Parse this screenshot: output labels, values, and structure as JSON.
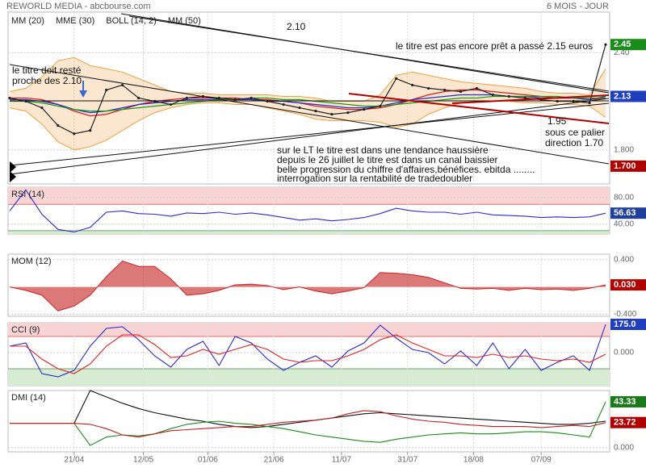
{
  "header": {
    "left": "REWORLD MEDIA - abcbourse.com",
    "right": "6 MOIS - JOUR"
  },
  "chart_data": [
    {
      "type": "price",
      "xlim": [
        0,
        37
      ],
      "ylim": [
        1.59,
        2.65
      ],
      "yticks": [
        {
          "value": 2.4,
          "label": "2.40"
        },
        {
          "value": 1.8,
          "label": "1.800"
        }
      ],
      "close_color": "#222222",
      "close": [
        2.12,
        2.1,
        2.06,
        1.95,
        1.9,
        1.92,
        2.17,
        2.2,
        2.12,
        2.1,
        2.08,
        2.12,
        2.13,
        2.12,
        2.11,
        2.12,
        2.1,
        2.08,
        2.06,
        2.04,
        2.02,
        2.03,
        2.05,
        2.07,
        2.24,
        2.2,
        2.18,
        2.17,
        2.16,
        2.18,
        2.14,
        2.13,
        2.12,
        2.11,
        2.1,
        2.1,
        2.09,
        2.45
      ],
      "series": [
        {
          "name": "MM (20)",
          "color": "#d42020",
          "values": [
            2.12,
            2.12,
            2.11,
            2.08,
            2.04,
            2.01,
            2.02,
            2.05,
            2.08,
            2.1,
            2.11,
            2.12,
            2.12,
            2.12,
            2.12,
            2.11,
            2.11,
            2.1,
            2.09,
            2.07,
            2.06,
            2.05,
            2.05,
            2.06,
            2.08,
            2.11,
            2.14,
            2.16,
            2.17,
            2.17,
            2.16,
            2.15,
            2.14,
            2.13,
            2.12,
            2.12,
            2.11,
            2.12
          ]
        },
        {
          "name": "MME (30)",
          "color": "#2a2ad0",
          "values": [
            2.11,
            2.11,
            2.1,
            2.08,
            2.05,
            2.03,
            2.04,
            2.06,
            2.08,
            2.09,
            2.1,
            2.11,
            2.11,
            2.11,
            2.11,
            2.11,
            2.1,
            2.1,
            2.09,
            2.08,
            2.07,
            2.06,
            2.06,
            2.07,
            2.09,
            2.11,
            2.12,
            2.13,
            2.14,
            2.14,
            2.14,
            2.13,
            2.13,
            2.12,
            2.12,
            2.12,
            2.11,
            2.13
          ]
        },
        {
          "name": "BOLL (14, 2)",
          "color": "#f0a040",
          "upper": [
            2.16,
            2.18,
            2.25,
            2.35,
            2.37,
            2.32,
            2.3,
            2.28,
            2.24,
            2.2,
            2.16,
            2.15,
            2.15,
            2.14,
            2.14,
            2.14,
            2.14,
            2.13,
            2.13,
            2.12,
            2.1,
            2.1,
            2.1,
            2.14,
            2.26,
            2.28,
            2.26,
            2.24,
            2.22,
            2.21,
            2.2,
            2.19,
            2.18,
            2.16,
            2.15,
            2.15,
            2.14,
            2.3
          ],
          "lower": [
            2.06,
            2.04,
            1.96,
            1.85,
            1.8,
            1.82,
            1.86,
            1.92,
            1.98,
            2.03,
            2.06,
            2.08,
            2.09,
            2.09,
            2.08,
            2.08,
            2.06,
            2.04,
            2.02,
            1.99,
            1.98,
            1.98,
            1.98,
            1.97,
            1.94,
            1.96,
            2.02,
            2.06,
            2.09,
            2.1,
            2.1,
            2.1,
            2.09,
            2.09,
            2.08,
            2.08,
            2.07,
            2.0
          ]
        },
        {
          "name": "MM (50)",
          "color": "#1a9a1a",
          "values": [
            2.1,
            2.1,
            2.09,
            2.07,
            2.05,
            2.04,
            2.04,
            2.05,
            2.06,
            2.07,
            2.08,
            2.09,
            2.1,
            2.11,
            2.11,
            2.12,
            2.12,
            2.11,
            2.11,
            2.1,
            2.09,
            2.08,
            2.07,
            2.07,
            2.08,
            2.09,
            2.1,
            2.11,
            2.12,
            2.12,
            2.13,
            2.13,
            2.13,
            2.13,
            2.13,
            2.12,
            2.12,
            2.12
          ]
        }
      ],
      "tags": [
        2.45,
        2.13,
        {
          "value": 1.7,
          "label": "1.700"
        }
      ],
      "tag_colors": [
        "#1a8c1a",
        "#1f3fbf",
        "#b00000"
      ],
      "annotations": [
        "2.10",
        "le titre est pas encore prêt a passé 2.15 euros",
        "le titre doit resté",
        "proche des 2.10",
        "1.95",
        "sous ce palier",
        "direction 1.70",
        "sur le LT le titre est dans une tendance haussière",
        "depuis le 26 juillet le titre est dans un canal baissier",
        "belle progression du chiffre d'affaires,bénéfices. ebitda ........",
        "interrogation sur la rentabilité de tradedoubler"
      ]
    },
    {
      "type": "line",
      "title": "RSI (14)",
      "xlim": [
        0,
        37
      ],
      "ylim": [
        25,
        96
      ],
      "yticks": [
        {
          "value": 80,
          "label": "80.00"
        },
        {
          "value": 40,
          "label": "40.00"
        }
      ],
      "zones": [
        30,
        70
      ],
      "series": [
        {
          "color": "#2a2ad0",
          "values": [
            60,
            92,
            55,
            32,
            28,
            35,
            58,
            60,
            56,
            55,
            52,
            57,
            56,
            58,
            55,
            57,
            54,
            50,
            46,
            48,
            45,
            47,
            50,
            56,
            64,
            60,
            58,
            58,
            55,
            58,
            54,
            53,
            52,
            50,
            51,
            50,
            51,
            56.63
          ]
        }
      ],
      "tags": [
        56.63
      ],
      "tag_colors": [
        "#1f3f9f"
      ]
    },
    {
      "type": "area",
      "title": "MOM (12)",
      "xlim": [
        0,
        37
      ],
      "ylim": [
        -0.43,
        0.48
      ],
      "yticks": [
        {
          "value": 0.4,
          "label": "0.400"
        },
        {
          "value": -0.4,
          "label": "-0.400"
        }
      ],
      "series": [
        {
          "color": "#c83030",
          "values": [
            0,
            -0.05,
            -0.12,
            -0.35,
            -0.28,
            -0.12,
            0.15,
            0.38,
            0.3,
            0.3,
            0.12,
            -0.12,
            -0.1,
            -0.05,
            0.03,
            0.04,
            0.02,
            -0.04,
            0,
            -0.06,
            -0.1,
            -0.06,
            -0.01,
            0.21,
            0.2,
            0.18,
            0.14,
            0.06,
            -0.02,
            -0.03,
            -0.02,
            -0.05,
            -0.02,
            -0.04,
            -0.03,
            -0.05,
            -0.02,
            0.03
          ]
        }
      ],
      "tags": [
        {
          "value": 0.03,
          "label": "0.030"
        }
      ],
      "tag_colors": [
        "#b00000"
      ]
    },
    {
      "type": "line",
      "title": "CCI (9)",
      "xlim": [
        0,
        37
      ],
      "ylim": [
        -205,
        185
      ],
      "yticks": [
        {
          "value": 0,
          "label": "0.000"
        }
      ],
      "zones": [
        -100,
        100
      ],
      "series": [
        {
          "color": "#2a2ad0",
          "values": [
            40,
            60,
            -130,
            -150,
            -110,
            40,
            150,
            160,
            80,
            -20,
            -90,
            20,
            70,
            -80,
            100,
            60,
            -40,
            -110,
            -60,
            -20,
            -90,
            10,
            60,
            170,
            90,
            20,
            0,
            -70,
            10,
            -80,
            60,
            -100,
            20,
            -110,
            -60,
            -20,
            -110,
            175
          ]
        },
        {
          "color": "#e02020",
          "values": [
            40,
            40,
            -40,
            -100,
            -130,
            -70,
            40,
            110,
            110,
            50,
            -30,
            -20,
            20,
            -10,
            20,
            50,
            20,
            -40,
            -60,
            -50,
            -50,
            -20,
            20,
            80,
            110,
            60,
            20,
            -20,
            -20,
            -30,
            -10,
            -30,
            -20,
            -40,
            -50,
            -40,
            -60,
            -10
          ]
        }
      ],
      "tags": [
        {
          "value": 175,
          "label": "175.0"
        }
      ],
      "tag_colors": [
        "#1f3fbf"
      ]
    },
    {
      "type": "line",
      "title": "DMI (14)",
      "xlim": [
        0,
        37
      ],
      "ylim": [
        -4,
        54
      ],
      "yticks": [
        {
          "value": 0,
          "label": "0.000"
        }
      ],
      "xticks": [
        {
          "value": 4,
          "label": "21/04"
        },
        {
          "value": 8.3,
          "label": "12/05"
        },
        {
          "value": 12.3,
          "label": "01/06"
        },
        {
          "value": 16.4,
          "label": "21/06"
        },
        {
          "value": 20.6,
          "label": "11/07"
        },
        {
          "value": 24.7,
          "label": "31/07"
        },
        {
          "value": 28.8,
          "label": "18/08"
        },
        {
          "value": 33,
          "label": "07/09"
        }
      ],
      "series": [
        {
          "color": "#111111",
          "values": [
            23,
            23,
            23,
            23,
            23,
            54,
            48,
            42,
            37,
            33,
            30,
            27,
            25,
            22,
            20,
            19,
            20,
            22,
            24,
            26,
            28,
            30,
            32,
            33,
            32,
            31,
            30,
            29,
            28,
            27,
            26,
            25,
            24,
            23,
            22,
            22,
            23,
            25
          ]
        },
        {
          "color": "#1a8a1a",
          "values": [
            23,
            23,
            23,
            23,
            23,
            2,
            10,
            12,
            11,
            13,
            18,
            22,
            24,
            25,
            23,
            22,
            20,
            18,
            15,
            12,
            10,
            8,
            6,
            5,
            8,
            10,
            12,
            13,
            14,
            13,
            13,
            14,
            15,
            15,
            14,
            12,
            10,
            43.33
          ]
        },
        {
          "color": "#c02020",
          "values": [
            23,
            23,
            23,
            23,
            23,
            22,
            18,
            12,
            10,
            13,
            16,
            17,
            18,
            19,
            20,
            20,
            22,
            24,
            25,
            26,
            28,
            32,
            35,
            34,
            30,
            27,
            25,
            24,
            22,
            21,
            20,
            20,
            20,
            19,
            20,
            21,
            20,
            23.72
          ]
        }
      ],
      "tags": [
        43.33,
        23.72
      ],
      "tag_colors": [
        "#1a7a1a",
        "#b00000"
      ]
    }
  ]
}
